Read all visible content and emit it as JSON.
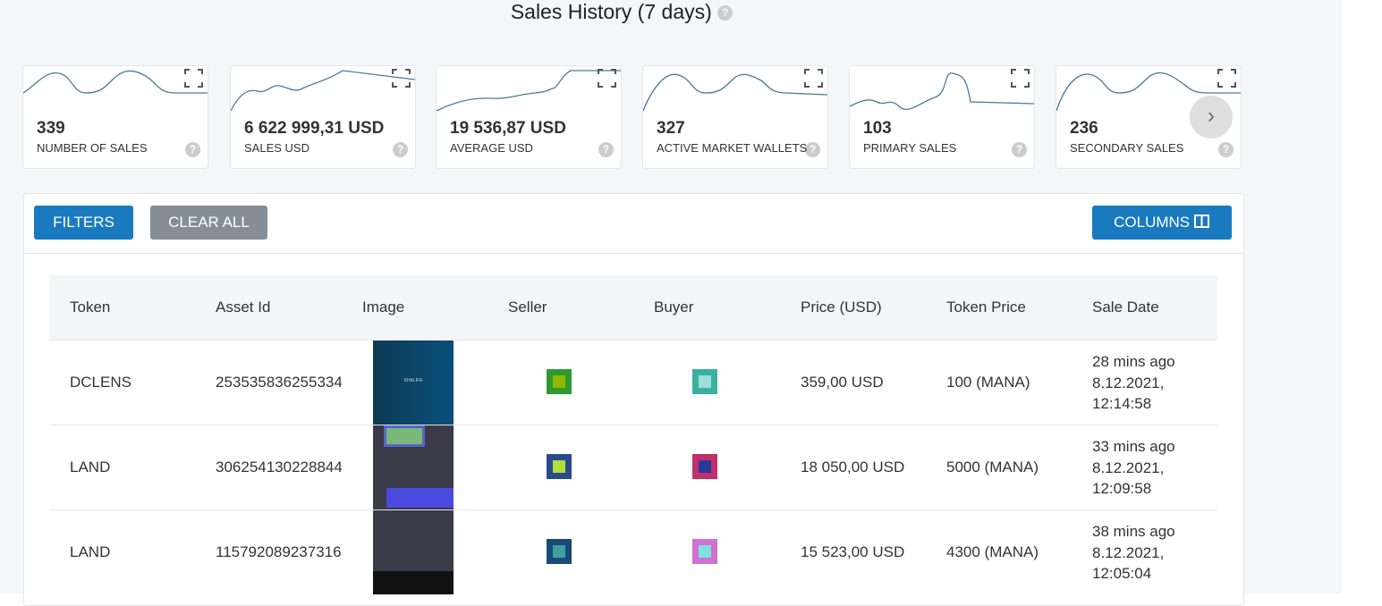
{
  "header": {
    "title": "Sales History (7 days)"
  },
  "stats": [
    {
      "value": "339",
      "label": "NUMBER OF SALES"
    },
    {
      "value": "6 622 999,31 USD",
      "label": "SALES USD"
    },
    {
      "value": "19 536,87 USD",
      "label": "AVERAGE USD"
    },
    {
      "value": "327",
      "label": "ACTIVE MARKET WALLETS"
    },
    {
      "value": "103",
      "label": "PRIMARY SALES"
    },
    {
      "value": "236",
      "label": "SECONDARY SALES"
    }
  ],
  "toolbar": {
    "filters": "FILTERS",
    "clear": "CLEAR ALL",
    "columns": "COLUMNS"
  },
  "table": {
    "columns": [
      "Token",
      "Asset Id",
      "Image",
      "Seller",
      "Buyer",
      "Price (USD)",
      "Token Price",
      "Sale Date"
    ],
    "rows": [
      {
        "token": "DCLENS",
        "asset": "253535836255334",
        "image_text": "KHALIFA",
        "price": "359,00 USD",
        "token_price": "100 (MANA)",
        "ago": "28 mins ago",
        "date": "8.12.2021,",
        "time": "12:14:58"
      },
      {
        "token": "LAND",
        "asset": "306254130228844",
        "price": "18 050,00 USD",
        "token_price": "5000 (MANA)",
        "ago": "33 mins ago",
        "date": "8.12.2021,",
        "time": "12:09:58"
      },
      {
        "token": "LAND",
        "asset": "115792089237316",
        "price": "15 523,00 USD",
        "token_price": "4300 (MANA)",
        "ago": "38 mins ago",
        "date": "8.12.2021,",
        "time": "12:05:04"
      }
    ]
  }
}
